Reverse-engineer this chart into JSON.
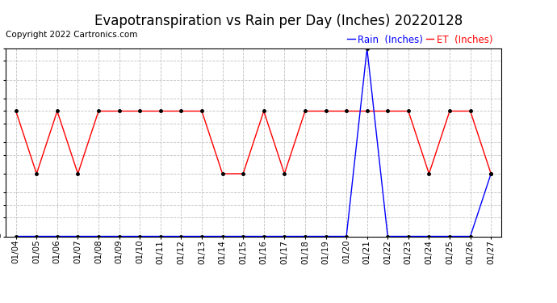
{
  "title": "Evapotranspiration vs Rain per Day (Inches) 20220128",
  "copyright": "Copyright 2022 Cartronics.com",
  "legend_rain": "Rain  (Inches)",
  "legend_et": "ET  (Inches)",
  "x_labels": [
    "01/04",
    "01/05",
    "01/06",
    "01/07",
    "01/08",
    "01/09",
    "01/10",
    "01/11",
    "01/12",
    "01/13",
    "01/14",
    "01/15",
    "01/16",
    "01/17",
    "01/18",
    "01/19",
    "01/20",
    "01/21",
    "01/22",
    "01/23",
    "01/24",
    "01/25",
    "01/26",
    "01/27"
  ],
  "et_values": [
    0.02,
    0.01,
    0.02,
    0.01,
    0.02,
    0.02,
    0.02,
    0.02,
    0.02,
    0.02,
    0.01,
    0.01,
    0.02,
    0.01,
    0.02,
    0.02,
    0.02,
    0.02,
    0.02,
    0.02,
    0.01,
    0.02,
    0.02,
    0.01
  ],
  "rain_values": [
    0.0,
    0.0,
    0.0,
    0.0,
    0.0,
    0.0,
    0.0,
    0.0,
    0.0,
    0.0,
    0.0,
    0.0,
    0.0,
    0.0,
    0.0,
    0.0,
    0.0,
    0.03,
    0.0,
    0.0,
    0.0,
    0.0,
    0.0,
    0.01
  ],
  "et_color": "red",
  "rain_color": "blue",
  "marker_color": "black",
  "background_color": "#ffffff",
  "grid_color": "#c0c0c0",
  "ylim_min": 0.0,
  "ylim_max": 0.03,
  "yticks": [
    0.0,
    0.003,
    0.005,
    0.007,
    0.01,
    0.013,
    0.015,
    0.018,
    0.02,
    0.022,
    0.025,
    0.028,
    0.03
  ],
  "title_fontsize": 12,
  "copyright_fontsize": 7.5,
  "legend_fontsize": 8.5,
  "tick_fontsize": 7.5,
  "fig_width": 6.9,
  "fig_height": 3.75,
  "dpi": 100
}
